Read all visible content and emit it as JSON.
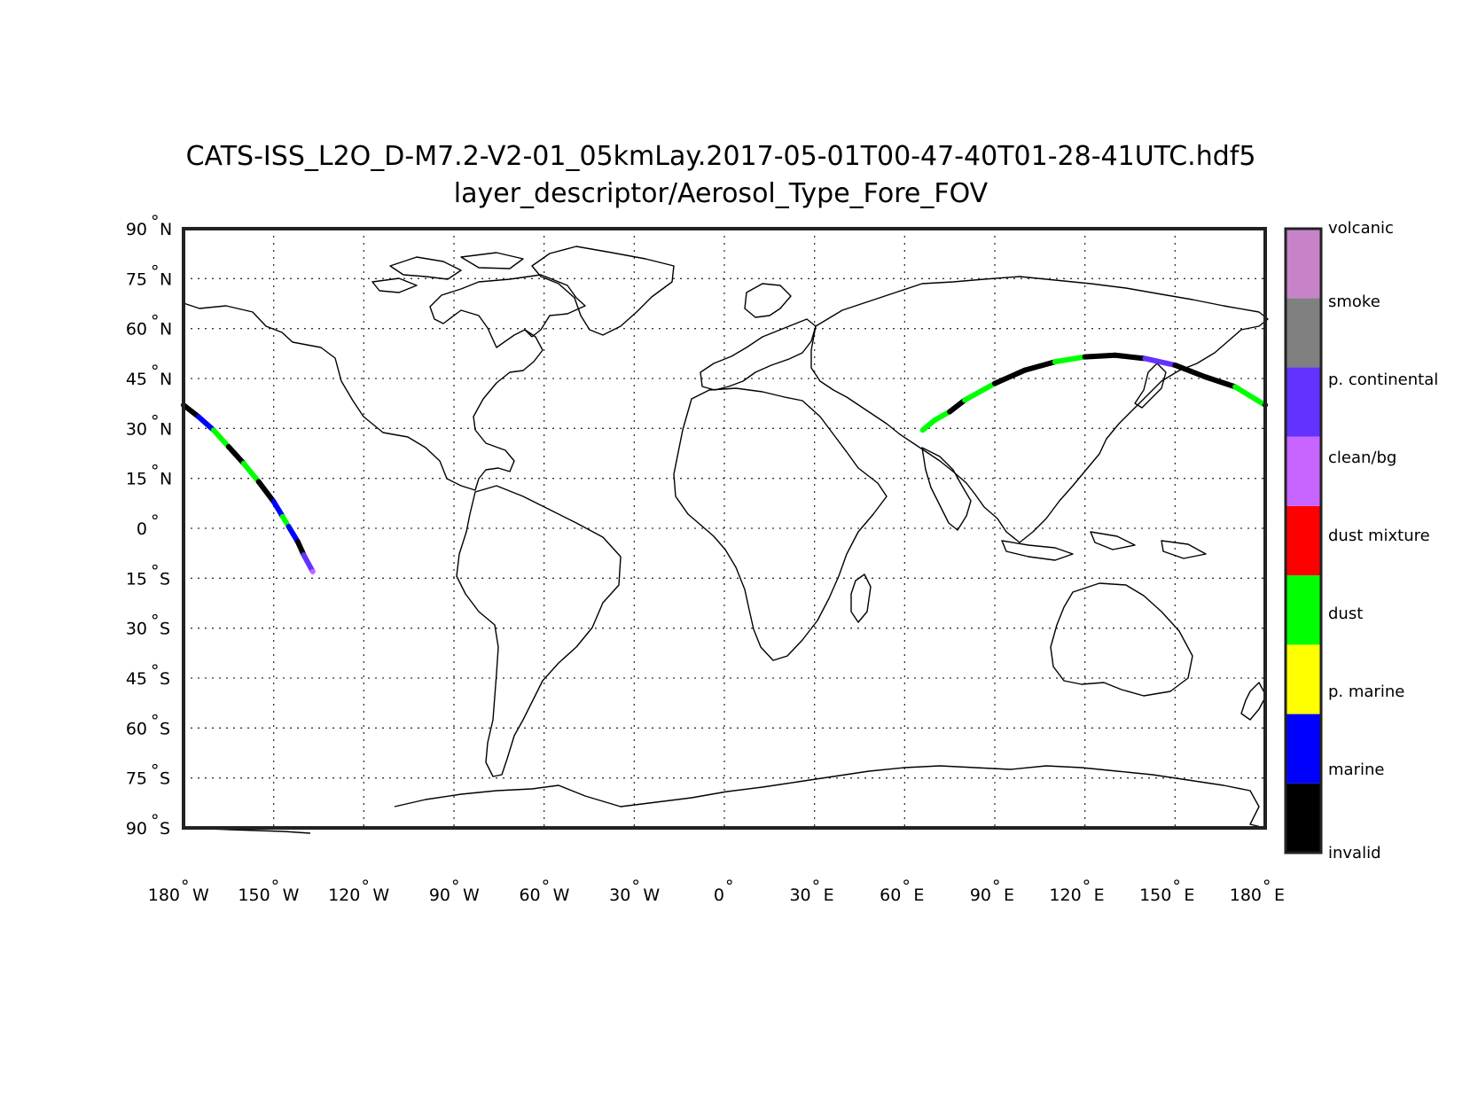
{
  "title_line1": "CATS-ISS_L2O_D-M7.2-V2-01_05kmLay.2017-05-01T00-47-40T01-28-41UTC.hdf5",
  "title_line2": "layer_descriptor/Aerosol_Type_Fore_FOV",
  "map": {
    "projection": "equirectangular",
    "lon_range": [
      -180,
      180
    ],
    "lat_range": [
      -90,
      90
    ],
    "grid": true,
    "lat_ticks": [
      {
        "value": 90,
        "num": "90",
        "hemi": "N"
      },
      {
        "value": 75,
        "num": "75",
        "hemi": "N"
      },
      {
        "value": 60,
        "num": "60",
        "hemi": "N"
      },
      {
        "value": 45,
        "num": "45",
        "hemi": "N"
      },
      {
        "value": 30,
        "num": "30",
        "hemi": "N"
      },
      {
        "value": 15,
        "num": "15",
        "hemi": "N"
      },
      {
        "value": 0,
        "num": "0",
        "hemi": ""
      },
      {
        "value": -15,
        "num": "15",
        "hemi": "S"
      },
      {
        "value": -30,
        "num": "30",
        "hemi": "S"
      },
      {
        "value": -45,
        "num": "45",
        "hemi": "S"
      },
      {
        "value": -60,
        "num": "60",
        "hemi": "S"
      },
      {
        "value": -75,
        "num": "75",
        "hemi": "S"
      },
      {
        "value": -90,
        "num": "90",
        "hemi": "S"
      }
    ],
    "lon_ticks": [
      {
        "value": -180,
        "num": "180",
        "hemi": "W"
      },
      {
        "value": -150,
        "num": "150",
        "hemi": "W"
      },
      {
        "value": -120,
        "num": "120",
        "hemi": "W"
      },
      {
        "value": -90,
        "num": "90",
        "hemi": "W"
      },
      {
        "value": -60,
        "num": "60",
        "hemi": "W"
      },
      {
        "value": -30,
        "num": "30",
        "hemi": "W"
      },
      {
        "value": 0,
        "num": "0",
        "hemi": ""
      },
      {
        "value": 30,
        "num": "30",
        "hemi": "E"
      },
      {
        "value": 60,
        "num": "60",
        "hemi": "E"
      },
      {
        "value": 90,
        "num": "90",
        "hemi": "E"
      },
      {
        "value": 120,
        "num": "120",
        "hemi": "E"
      },
      {
        "value": 150,
        "num": "150",
        "hemi": "E"
      },
      {
        "value": 180,
        "num": "180",
        "hemi": "E"
      }
    ]
  },
  "colorbar": {
    "placement": "right",
    "classes": [
      {
        "label": "invalid",
        "color": "#000000"
      },
      {
        "label": "marine",
        "color": "#0000ff"
      },
      {
        "label": "p. marine",
        "color": "#ffff00"
      },
      {
        "label": "dust",
        "color": "#00ff00"
      },
      {
        "label": "dust mixture",
        "color": "#ff0000"
      },
      {
        "label": "clean/bg",
        "color": "#c864ff"
      },
      {
        "label": "p. continental",
        "color": "#6432ff"
      },
      {
        "label": "smoke",
        "color": "#808080"
      },
      {
        "label": "volcanic",
        "color": "#c882c8"
      }
    ]
  },
  "chart_data": {
    "type": "scatter",
    "xlabel": "",
    "ylabel": "",
    "xlim": [
      -180,
      180
    ],
    "ylim": [
      -90,
      90
    ],
    "track_segments": [
      {
        "lon": [
          -180,
          -175,
          -170,
          -165,
          -160,
          -155,
          -150,
          -147,
          -145,
          -142,
          -140,
          -137
        ],
        "lat": [
          37,
          33.5,
          29.5,
          24.5,
          19.5,
          14,
          8,
          3.5,
          0.5,
          -4,
          -8,
          -13
        ],
        "class": [
          "invalid",
          "marine",
          "dust",
          "invalid",
          "dust",
          "invalid",
          "marine",
          "dust",
          "marine",
          "invalid",
          "p. continental",
          "clean/bg"
        ]
      },
      {
        "lon": [
          66,
          70,
          75,
          80,
          90,
          100,
          110,
          120,
          130,
          140,
          150,
          160,
          170,
          180
        ],
        "lat": [
          29.5,
          32.5,
          35,
          38.5,
          43.5,
          47.5,
          50,
          51.5,
          52,
          51,
          49,
          45.5,
          42.5,
          37
        ],
        "class": [
          "dust",
          "dust",
          "invalid",
          "dust",
          "invalid",
          "invalid",
          "dust",
          "invalid",
          "invalid",
          "p. continental",
          "invalid",
          "invalid",
          "dust",
          "invalid"
        ]
      }
    ]
  }
}
